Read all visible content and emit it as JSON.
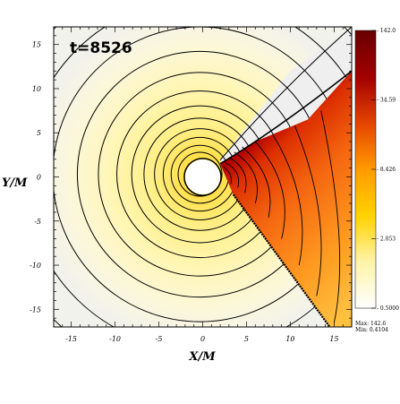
{
  "chart_data": {
    "type": "heatmap",
    "annotation": "t=8526",
    "xlabel": "X/M",
    "ylabel": "Y/M",
    "xlim": [
      -17,
      17
    ],
    "ylim": [
      -17,
      17
    ],
    "x_ticks": [
      {
        "value": -15,
        "label": "-15"
      },
      {
        "value": -10,
        "label": "-10"
      },
      {
        "value": -5,
        "label": "-5"
      },
      {
        "value": 0,
        "label": "0"
      },
      {
        "value": 5,
        "label": "5"
      },
      {
        "value": 10,
        "label": "10"
      },
      {
        "value": 15,
        "label": "15"
      }
    ],
    "y_ticks": [
      {
        "value": 15,
        "label": "15"
      },
      {
        "value": 10,
        "label": "10"
      },
      {
        "value": 5,
        "label": "5"
      },
      {
        "value": 0,
        "label": "0"
      },
      {
        "value": -5,
        "label": "-5"
      },
      {
        "value": -10,
        "label": "-10"
      },
      {
        "value": -15,
        "label": "-15"
      }
    ],
    "colorbar": {
      "scale": "log",
      "min": 0.5,
      "max": 142,
      "ticks": [
        {
          "value": 142.0,
          "label": "142.0"
        },
        {
          "value": 34.59,
          "label": "34.59"
        },
        {
          "value": 8.426,
          "label": "8.426"
        },
        {
          "value": 2.053,
          "label": "2.053"
        },
        {
          "value": 0.5,
          "label": "0.5000"
        }
      ],
      "max_label": "Max: 142.6",
      "min_label": "Min: 0.4104",
      "colors": [
        "#ffffff",
        "#fff3a8",
        "#ffd200",
        "#ff9a00",
        "#e44400",
        "#a00000",
        "#6a0000"
      ]
    },
    "central_object": {
      "x": 0,
      "y": 0,
      "radius": 2
    },
    "shock_cone": {
      "apex": [
        2,
        1.5
      ],
      "upper_edge_end": [
        17,
        17
      ],
      "lower_edge_end": [
        14.5,
        -17
      ],
      "direction": "downstream toward +x"
    },
    "contours": {
      "center": [
        -0.3,
        0.3
      ],
      "radii": [
        2.5,
        3.3,
        4.2,
        5.2,
        6.4,
        7.8,
        9.5,
        11.6,
        14.0,
        16.8,
        20.0,
        23.5
      ]
    }
  }
}
